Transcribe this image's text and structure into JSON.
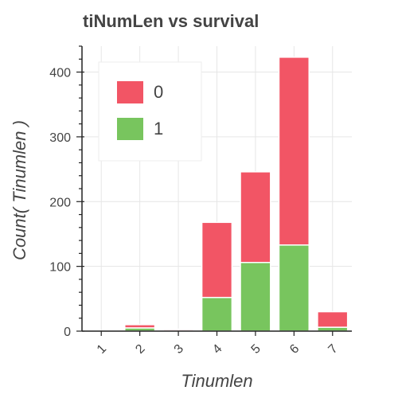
{
  "chart_data": {
    "type": "bar",
    "stacked": true,
    "title": "tiNumLen vs survival",
    "xlabel": "Tinumlen",
    "ylabel": "Count( Tinumlen )",
    "categories": [
      "1",
      "2",
      "3",
      "4",
      "5",
      "6",
      "7"
    ],
    "series": [
      {
        "name": "1",
        "color": "#78c55e",
        "values": [
          0,
          5,
          1,
          52,
          106,
          133,
          6
        ]
      },
      {
        "name": "0",
        "color": "#f25565",
        "values": [
          0,
          5,
          2,
          116,
          140,
          290,
          24
        ]
      }
    ],
    "ylim": [
      0,
      440
    ],
    "yticks": [
      0,
      100,
      200,
      300,
      400
    ],
    "grid": true,
    "legend": {
      "position": "top-left",
      "entries": [
        "0",
        "1"
      ]
    }
  }
}
